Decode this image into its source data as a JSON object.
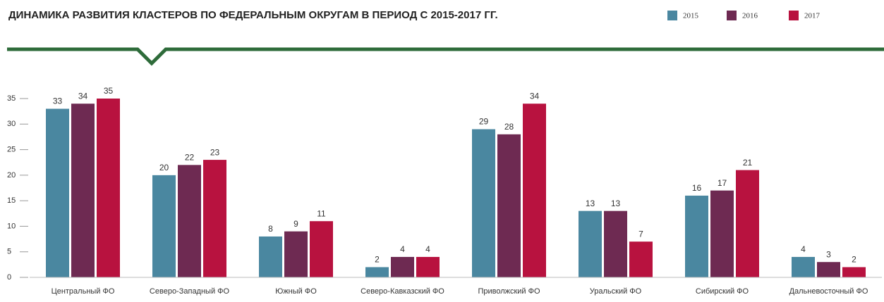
{
  "chart_data": {
    "type": "bar",
    "title": "ДИНАМИКА РАЗВИТИЯ КЛАСТЕРОВ ПО ФЕДЕРАЛЬНЫМ ОКРУГАМ В ПЕРИОД С 2015-2017 ГГ.",
    "categories": [
      "Центральный ФО",
      "Северо-Западный ФО",
      "Южный ФО",
      "Северо-Кавказский ФО",
      "Приволжский ФО",
      "Уральский ФО",
      "Сибирский ФО",
      "Дальневосточный ФО"
    ],
    "series": [
      {
        "name": "2015",
        "color": "#4a87a0",
        "values": [
          33,
          20,
          8,
          2,
          29,
          13,
          16,
          4
        ]
      },
      {
        "name": "2016",
        "color": "#6e2a52",
        "values": [
          34,
          22,
          9,
          4,
          28,
          13,
          17,
          3
        ]
      },
      {
        "name": "2017",
        "color": "#b8123f",
        "values": [
          35,
          23,
          11,
          4,
          34,
          7,
          21,
          2
        ]
      }
    ],
    "ylim": [
      0,
      35
    ],
    "yticks": [
      0,
      5,
      10,
      15,
      20,
      25,
      30,
      35
    ],
    "grid": false,
    "legend": "top-right"
  }
}
